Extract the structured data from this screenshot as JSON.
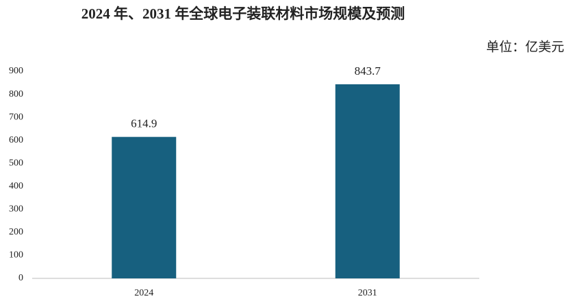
{
  "chart_data": {
    "type": "bar",
    "title": "2024 年、2031 年全球电子装联材料市场规模及预测",
    "unit_label": "单位：亿美元",
    "categories": [
      "2024",
      "2031"
    ],
    "values": [
      614.9,
      843.7
    ],
    "color": "#17607f",
    "ylim": [
      0,
      900
    ],
    "yticks": [
      0,
      100,
      200,
      300,
      400,
      500,
      600,
      700,
      800,
      900
    ],
    "grid": false
  }
}
